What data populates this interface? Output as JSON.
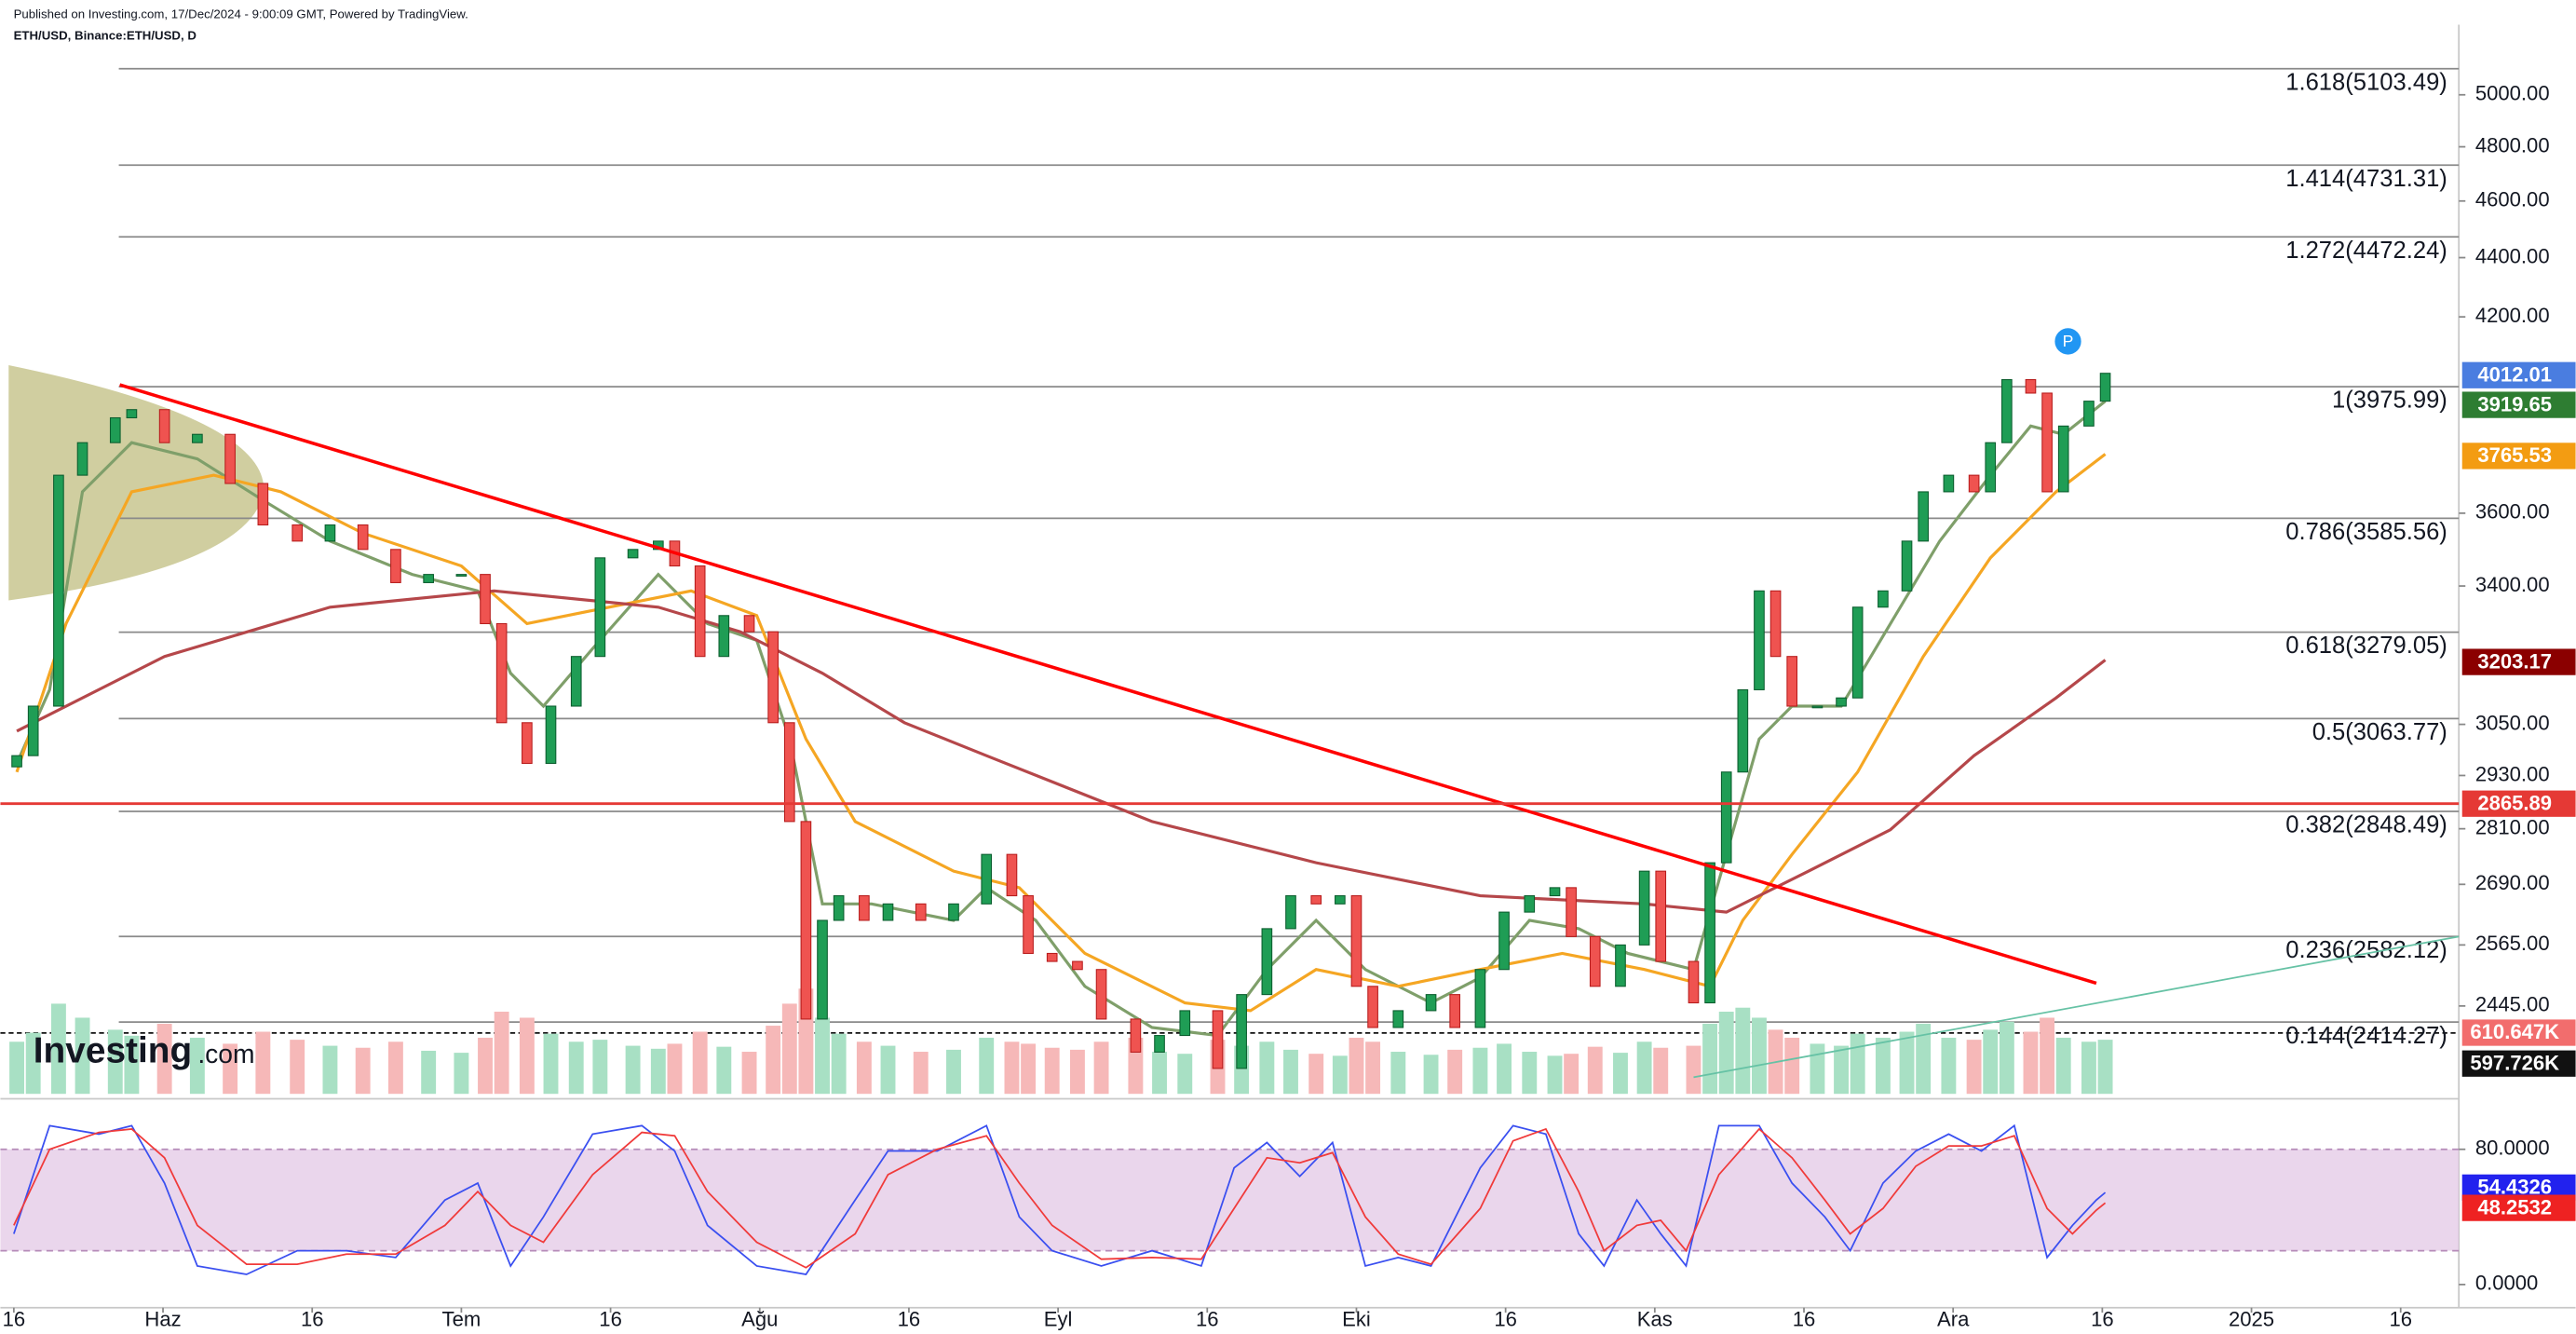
{
  "header": {
    "published": "Published on Investing.com, 17/Dec/2024 - 9:00:09 GMT, Powered by TradingView.",
    "symbol": "ETH/USD, Binance:ETH/USD, D"
  },
  "logo": {
    "name": "Investing",
    "suffix": ".com"
  },
  "chart_data": [
    {
      "type": "candlestick",
      "log_scale": true,
      "xlim": [
        -0.09,
        16.39
      ],
      "ylim": [
        2282,
        5283
      ],
      "yticks": [
        {
          "value": 2445,
          "label": "2445.00"
        },
        {
          "value": 2565,
          "label": "2565.00"
        },
        {
          "value": 2690,
          "label": "2690.00"
        },
        {
          "value": 2810,
          "label": "2810.00"
        },
        {
          "value": 2930,
          "label": "2930.00"
        },
        {
          "value": 3050,
          "label": "3050.00"
        },
        {
          "value": 3400,
          "label": "3400.00"
        },
        {
          "value": 3600,
          "label": "3600.00"
        },
        {
          "value": 4200,
          "label": "4200.00"
        },
        {
          "value": 4400,
          "label": "4400.00"
        },
        {
          "value": 4600,
          "label": "4600.00"
        },
        {
          "value": 4800,
          "label": "4800.00"
        },
        {
          "value": 5000,
          "label": "5000.00"
        }
      ],
      "up_color": "#1f9d55",
      "down_color": "#ef5350",
      "volume_up_color": "#a8e0c4",
      "volume_down_color": "#f6b8b8",
      "x": [
        0.02,
        0.13,
        0.3,
        0.46,
        0.68,
        0.79,
        1.01,
        1.23,
        1.45,
        1.67,
        1.9,
        2.12,
        2.34,
        2.56,
        2.78,
        3.0,
        3.16,
        3.27,
        3.44,
        3.6,
        3.77,
        3.93,
        4.15,
        4.32,
        4.43,
        4.6,
        4.76,
        4.93,
        5.09,
        5.2,
        5.31,
        5.42,
        5.53,
        5.7,
        5.86,
        6.08,
        6.3,
        6.52,
        6.69,
        6.8,
        6.96,
        7.13,
        7.29,
        7.52,
        7.68,
        7.85,
        8.07,
        8.23,
        8.4,
        8.56,
        8.73,
        8.89,
        9.0,
        9.11,
        9.28,
        9.5,
        9.66,
        9.83,
        9.99,
        10.16,
        10.33,
        10.44,
        10.6,
        10.77,
        10.93,
        11.04,
        11.26,
        11.37,
        11.48,
        11.59,
        11.7,
        11.81,
        11.92,
        12.09,
        12.25,
        12.36,
        12.53,
        12.69,
        12.8,
        12.97,
        13.14,
        13.25,
        13.36,
        13.52,
        13.63,
        13.74,
        13.91,
        14.02
      ],
      "open": [
        2950,
        2976,
        3094,
        3709,
        3805,
        3880,
        3905,
        3805,
        3830,
        3685,
        3567,
        3522,
        3567,
        3499,
        3409,
        3431,
        3431,
        3301,
        3054,
        2958,
        3094,
        3217,
        3476,
        3499,
        3522,
        3454,
        3217,
        3322,
        3280,
        3054,
        2826,
        2420,
        2615,
        2666,
        2615,
        2649,
        2615,
        2649,
        2754,
        2666,
        2548,
        2532,
        2516,
        2420,
        2358,
        2389,
        2436,
        2328,
        2467,
        2598,
        2666,
        2649,
        2666,
        2483,
        2404,
        2436,
        2467,
        2404,
        2516,
        2632,
        2666,
        2683,
        2582,
        2483,
        2565,
        2718,
        2532,
        2451,
        2736,
        2938,
        3134,
        3387,
        3217,
        3094,
        3094,
        3114,
        3344,
        3387,
        3522,
        3661,
        3709,
        3661,
        3805,
        3998,
        3956,
        3661,
        3855,
        3931
      ],
      "close": [
        2976,
        3094,
        3709,
        3805,
        3880,
        3905,
        3805,
        3830,
        3685,
        3567,
        3522,
        3567,
        3499,
        3409,
        3431,
        3431,
        3301,
        3054,
        2958,
        3094,
        3217,
        3476,
        3499,
        3522,
        3454,
        3217,
        3322,
        3280,
        3054,
        2826,
        2420,
        2615,
        2666,
        2615,
        2649,
        2615,
        2649,
        2754,
        2666,
        2548,
        2532,
        2516,
        2420,
        2358,
        2389,
        2436,
        2328,
        2467,
        2598,
        2666,
        2649,
        2666,
        2483,
        2404,
        2436,
        2467,
        2404,
        2516,
        2632,
        2666,
        2683,
        2582,
        2483,
        2565,
        2718,
        2532,
        2451,
        2736,
        2938,
        3134,
        3387,
        3217,
        3094,
        3094,
        3114,
        3344,
        3387,
        3522,
        3661,
        3709,
        3661,
        3805,
        3998,
        3956,
        3661,
        3855,
        3931,
        4018
      ],
      "volume_lim": [
        0,
        1100
      ],
      "volume": [
        520,
        610,
        900,
        760,
        640,
        580,
        700,
        560,
        500,
        620,
        540,
        480,
        460,
        520,
        430,
        410,
        560,
        820,
        760,
        600,
        520,
        540,
        480,
        450,
        500,
        620,
        470,
        420,
        680,
        900,
        1050,
        760,
        600,
        520,
        480,
        420,
        440,
        560,
        520,
        500,
        460,
        440,
        520,
        560,
        420,
        400,
        540,
        480,
        520,
        440,
        400,
        380,
        560,
        520,
        420,
        390,
        440,
        460,
        500,
        420,
        380,
        400,
        470,
        410,
        520,
        460,
        480,
        700,
        820,
        860,
        760,
        640,
        560,
        500,
        480,
        600,
        560,
        620,
        700,
        560,
        540,
        640,
        720,
        620,
        760,
        560,
        520,
        540
      ],
      "lines": [
        {
          "color": "#7f9f6a",
          "x": [
            0.02,
            0.24,
            0.46,
            0.79,
            1.23,
            1.67,
            2.12,
            2.67,
            3.11,
            3.33,
            3.55,
            3.88,
            4.32,
            4.65,
            4.98,
            5.2,
            5.42,
            5.75,
            6.3,
            6.52,
            6.85,
            7.18,
            7.63,
            8.07,
            8.4,
            8.73,
            9.06,
            9.5,
            9.83,
            10.16,
            10.49,
            10.82,
            11.26,
            11.48,
            11.7,
            11.92,
            12.25,
            12.58,
            12.91,
            13.25,
            13.52,
            13.74,
            14.02
          ],
          "values": [
            2958,
            3134,
            3661,
            3805,
            3757,
            3637,
            3522,
            3431,
            3387,
            3175,
            3094,
            3237,
            3431,
            3301,
            3258,
            3015,
            2649,
            2649,
            2615,
            2683,
            2615,
            2483,
            2404,
            2389,
            2516,
            2615,
            2516,
            2451,
            2500,
            2615,
            2598,
            2548,
            2516,
            2754,
            3015,
            3094,
            3094,
            3301,
            3522,
            3709,
            3855,
            3830,
            3931
          ]
        },
        {
          "color": "#f5a623",
          "x": [
            0.02,
            0.35,
            0.79,
            1.34,
            1.79,
            2.34,
            3.0,
            3.44,
            3.99,
            4.54,
            4.98,
            5.31,
            5.64,
            6.3,
            6.74,
            7.18,
            7.85,
            8.29,
            8.73,
            9.28,
            9.83,
            10.38,
            10.93,
            11.37,
            11.59,
            11.92,
            12.36,
            12.8,
            13.25,
            13.69,
            14.02
          ],
          "values": [
            2938,
            3301,
            3661,
            3709,
            3661,
            3544,
            3454,
            3301,
            3344,
            3387,
            3322,
            3015,
            2826,
            2718,
            2683,
            2548,
            2451,
            2436,
            2516,
            2483,
            2516,
            2548,
            2516,
            2483,
            2615,
            2754,
            2938,
            3217,
            3476,
            3661,
            3771
          ]
        },
        {
          "color": "#b5474a",
          "x": [
            0.02,
            1.01,
            2.12,
            3.22,
            4.32,
            4.87,
            5.42,
            5.97,
            6.52,
            7.63,
            8.73,
            9.83,
            10.93,
            11.48,
            12.03,
            12.58,
            13.14,
            13.69,
            14.02
          ],
          "values": [
            3034,
            3217,
            3344,
            3387,
            3344,
            3280,
            3175,
            3054,
            2976,
            2826,
            2736,
            2666,
            2649,
            2632,
            2718,
            2808,
            2976,
            3114,
            3208
          ]
        }
      ],
      "trendlines": [
        {
          "color": "#ff0000",
          "x": [
            0.71,
            13.96
          ],
          "values": [
            3982,
            2489
          ]
        },
        {
          "color": "#66c2a5",
          "x": [
            11.26,
            16.39
          ],
          "values": [
            2312,
            2582
          ]
        }
      ],
      "fib_levels": [
        {
          "value": 5103.49,
          "label": "1.618(5103.49)"
        },
        {
          "value": 4731.31,
          "label": "1.414(4731.31)"
        },
        {
          "value": 4472.24,
          "label": "1.272(4472.24)"
        },
        {
          "value": 3975.99,
          "label": "1(3975.99)"
        },
        {
          "value": 3585.56,
          "label": "0.786(3585.56)"
        },
        {
          "value": 3279.05,
          "label": "0.618(3279.05)"
        },
        {
          "value": 3063.77,
          "label": "0.5(3063.77)"
        },
        {
          "value": 2848.49,
          "label": "0.382(2848.49)"
        },
        {
          "value": 2582.12,
          "label": "0.236(2582.12)"
        },
        {
          "value": 2414.27,
          "label": "0.144(2414.27)"
        }
      ],
      "price_tags": [
        {
          "value": 4012.01,
          "color": "#4a7de0",
          "line": false
        },
        {
          "value": 3919.65,
          "color": "#2e7d32",
          "line": false
        },
        {
          "value": 3765.53,
          "color": "#f39c12",
          "line": false
        },
        {
          "value": 3203.17,
          "color": "#8b0000",
          "line": false
        },
        {
          "value": 2865.89,
          "color": "#e53935",
          "line": true
        }
      ],
      "volume_tags": [
        {
          "value": 610.647,
          "label": "610.647K",
          "color": "#f26d6d"
        },
        {
          "value": 597.726,
          "label": "597.726K",
          "color": "#111111"
        }
      ],
      "marker": {
        "label": "P",
        "x": 13.77,
        "value": 4120,
        "color": "#2196f3"
      }
    },
    {
      "type": "line",
      "xlim": [
        -0.09,
        16.39
      ],
      "ylim": [
        -13.7,
        106
      ],
      "xticks": [
        {
          "value": 0,
          "label": "16"
        },
        {
          "value": 1,
          "label": "Haz"
        },
        {
          "value": 2,
          "label": "16"
        },
        {
          "value": 3,
          "label": "Tem"
        },
        {
          "value": 4,
          "label": "16"
        },
        {
          "value": 5,
          "label": "Ağu"
        },
        {
          "value": 6,
          "label": "16"
        },
        {
          "value": 7,
          "label": "Eyl"
        },
        {
          "value": 8,
          "label": "16"
        },
        {
          "value": 9,
          "label": "Eki"
        },
        {
          "value": 10,
          "label": "16"
        },
        {
          "value": 11,
          "label": "Kas"
        },
        {
          "value": 12,
          "label": "16"
        },
        {
          "value": 13,
          "label": "Ara"
        },
        {
          "value": 14,
          "label": "16"
        },
        {
          "value": 15,
          "label": "2025"
        },
        {
          "value": 16,
          "label": "16"
        }
      ],
      "yticks": [
        {
          "value": 0,
          "label": "0.0000"
        },
        {
          "value": 80,
          "label": "80.0000"
        }
      ],
      "band": [
        20,
        80
      ],
      "band_color": "#e3c8e6",
      "x": [
        0.0,
        0.24,
        0.57,
        0.79,
        1.01,
        1.23,
        1.56,
        1.9,
        2.23,
        2.56,
        2.89,
        3.11,
        3.33,
        3.55,
        3.88,
        4.21,
        4.43,
        4.65,
        4.98,
        5.31,
        5.64,
        5.86,
        6.19,
        6.52,
        6.74,
        6.96,
        7.29,
        7.63,
        7.96,
        8.18,
        8.4,
        8.62,
        8.84,
        9.06,
        9.28,
        9.5,
        9.83,
        10.05,
        10.27,
        10.49,
        10.66,
        10.88,
        11.04,
        11.21,
        11.43,
        11.7,
        11.92,
        12.14,
        12.31,
        12.53,
        12.75,
        12.97,
        13.19,
        13.41,
        13.63,
        13.8,
        13.96,
        14.02
      ],
      "series": [
        {
          "color": "#3a4ff0",
          "values": [
            30,
            94,
            89,
            94,
            60,
            11,
            6,
            20,
            20,
            16,
            50,
            60,
            11,
            40,
            89,
            94,
            79,
            35,
            11,
            6,
            50,
            79,
            79,
            94,
            40,
            20,
            11,
            20,
            11,
            69,
            84,
            64,
            84,
            11,
            16,
            11,
            69,
            94,
            89,
            30,
            11,
            50,
            30,
            11,
            94,
            94,
            60,
            40,
            20,
            60,
            79,
            89,
            79,
            94,
            16,
            35,
            50,
            54.4326
          ]
        },
        {
          "color": "#f03a3a",
          "values": [
            35,
            80,
            90,
            92,
            75,
            35,
            12,
            12,
            18,
            18,
            35,
            55,
            35,
            25,
            65,
            90,
            88,
            55,
            25,
            10,
            30,
            65,
            80,
            88,
            60,
            35,
            15,
            16,
            15,
            45,
            75,
            72,
            78,
            40,
            18,
            12,
            45,
            85,
            92,
            55,
            20,
            35,
            38,
            20,
            65,
            92,
            75,
            50,
            30,
            45,
            70,
            82,
            82,
            88,
            45,
            30,
            44,
            48.2532
          ]
        }
      ],
      "tags": [
        {
          "value": 54.4326,
          "color": "#2222ee"
        },
        {
          "value": 48.2532,
          "color": "#ee2222"
        }
      ]
    }
  ]
}
